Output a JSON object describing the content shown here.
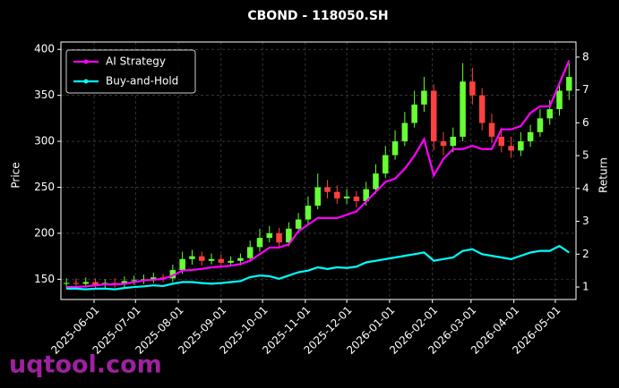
{
  "chart_data": {
    "type": "candlestick",
    "title": "CBOND - 118050.SH",
    "ylabel": "Price",
    "y2label": "Return",
    "x": [
      "2025-05-12",
      "2025-05-19",
      "2025-05-26",
      "2025-06-02",
      "2025-06-09",
      "2025-06-16",
      "2025-06-23",
      "2025-06-30",
      "2025-07-07",
      "2025-07-14",
      "2025-07-21",
      "2025-07-28",
      "2025-08-04",
      "2025-08-11",
      "2025-08-18",
      "2025-08-25",
      "2025-09-01",
      "2025-09-08",
      "2025-09-15",
      "2025-09-22",
      "2025-09-29",
      "2025-10-06",
      "2025-10-13",
      "2025-10-20",
      "2025-10-27",
      "2025-11-03",
      "2025-11-10",
      "2025-11-17",
      "2025-11-24",
      "2025-12-01",
      "2025-12-08",
      "2025-12-15",
      "2025-12-22",
      "2025-12-29",
      "2026-01-05",
      "2026-01-12",
      "2026-01-19",
      "2026-01-26",
      "2026-02-02",
      "2026-02-09",
      "2026-02-16",
      "2026-02-23",
      "2026-03-02",
      "2026-03-09",
      "2026-03-16",
      "2026-03-23",
      "2026-03-30",
      "2026-04-06",
      "2026-04-13",
      "2026-04-20",
      "2026-04-27",
      "2026-05-04",
      "2026-05-11"
    ],
    "open": [
      145,
      146,
      145,
      147,
      144,
      146,
      145,
      148,
      149,
      150,
      152,
      151,
      160,
      172,
      175,
      170,
      172,
      168,
      170,
      173,
      185,
      195,
      200,
      190,
      205,
      215,
      230,
      250,
      245,
      238,
      240,
      235,
      248,
      265,
      285,
      300,
      320,
      340,
      355,
      300,
      295,
      305,
      365,
      350,
      320,
      305,
      295,
      290,
      300,
      310,
      325,
      335,
      355
    ],
    "high": [
      151,
      151,
      152,
      151,
      150,
      151,
      153,
      154,
      155,
      157,
      156,
      166,
      180,
      182,
      180,
      178,
      177,
      175,
      178,
      192,
      205,
      208,
      206,
      212,
      222,
      240,
      265,
      258,
      252,
      248,
      246,
      256,
      275,
      295,
      312,
      332,
      355,
      370,
      362,
      310,
      315,
      385,
      380,
      358,
      330,
      315,
      305,
      310,
      318,
      335,
      345,
      365,
      385
    ],
    "low": [
      140,
      140,
      141,
      139,
      140,
      141,
      141,
      144,
      145,
      146,
      147,
      147,
      156,
      166,
      165,
      166,
      163,
      164,
      165,
      169,
      180,
      190,
      184,
      186,
      200,
      210,
      226,
      238,
      232,
      232,
      228,
      230,
      243,
      260,
      280,
      295,
      315,
      332,
      290,
      285,
      288,
      300,
      340,
      312,
      298,
      288,
      282,
      284,
      294,
      305,
      318,
      328,
      345
    ],
    "close": [
      146,
      145,
      147,
      144,
      146,
      145,
      148,
      149,
      150,
      152,
      151,
      160,
      172,
      175,
      170,
      172,
      168,
      170,
      173,
      185,
      195,
      200,
      190,
      205,
      215,
      230,
      250,
      245,
      238,
      240,
      235,
      248,
      265,
      285,
      300,
      320,
      340,
      355,
      300,
      295,
      305,
      365,
      350,
      320,
      305,
      295,
      290,
      300,
      310,
      325,
      335,
      355,
      370
    ],
    "up_color": "#66ff33",
    "down_color": "#ff4040",
    "series": [
      {
        "name": "AI Strategy",
        "color": "#ff00ff",
        "axis": "y2",
        "values": [
          1.0,
          1.0,
          1.02,
          1.05,
          1.08,
          1.08,
          1.1,
          1.15,
          1.2,
          1.22,
          1.25,
          1.35,
          1.5,
          1.52,
          1.55,
          1.6,
          1.62,
          1.65,
          1.7,
          1.8,
          2.0,
          2.2,
          2.2,
          2.3,
          2.7,
          2.9,
          3.1,
          3.1,
          3.1,
          3.2,
          3.3,
          3.6,
          3.9,
          4.2,
          4.3,
          4.6,
          5.0,
          5.5,
          4.4,
          4.9,
          5.2,
          5.2,
          5.3,
          5.2,
          5.2,
          5.8,
          5.8,
          5.9,
          6.3,
          6.5,
          6.5,
          7.2,
          7.9
        ]
      },
      {
        "name": "Buy-and-Hold",
        "color": "#00ffff",
        "axis": "y2",
        "values": [
          0.95,
          0.95,
          0.93,
          0.95,
          0.95,
          0.93,
          0.97,
          1.0,
          1.02,
          1.05,
          1.03,
          1.1,
          1.15,
          1.15,
          1.12,
          1.1,
          1.12,
          1.15,
          1.18,
          1.3,
          1.35,
          1.33,
          1.25,
          1.35,
          1.45,
          1.5,
          1.6,
          1.55,
          1.6,
          1.58,
          1.62,
          1.75,
          1.8,
          1.85,
          1.9,
          1.95,
          2.0,
          2.05,
          1.8,
          1.85,
          1.9,
          2.1,
          2.15,
          2.0,
          1.95,
          1.9,
          1.85,
          1.95,
          2.05,
          2.1,
          2.1,
          2.25,
          2.05
        ]
      }
    ],
    "xlim": [
      "2025-05-08",
      "2026-05-16"
    ],
    "xticks": [
      "2025-06-01",
      "2025-07-01",
      "2025-08-01",
      "2025-09-01",
      "2025-10-01",
      "2025-11-01",
      "2025-12-01",
      "2026-01-01",
      "2026-02-01",
      "2026-03-01",
      "2026-04-01",
      "2026-05-01"
    ],
    "ylim": [
      128,
      408
    ],
    "yticks": [
      150,
      200,
      250,
      300,
      350,
      400
    ],
    "y2lim": [
      0.62,
      8.46
    ],
    "y2ticks": [
      1,
      2,
      3,
      4,
      5,
      6,
      7,
      8
    ],
    "grid": true,
    "legend": "upper left"
  },
  "watermark": "uqtool.com"
}
